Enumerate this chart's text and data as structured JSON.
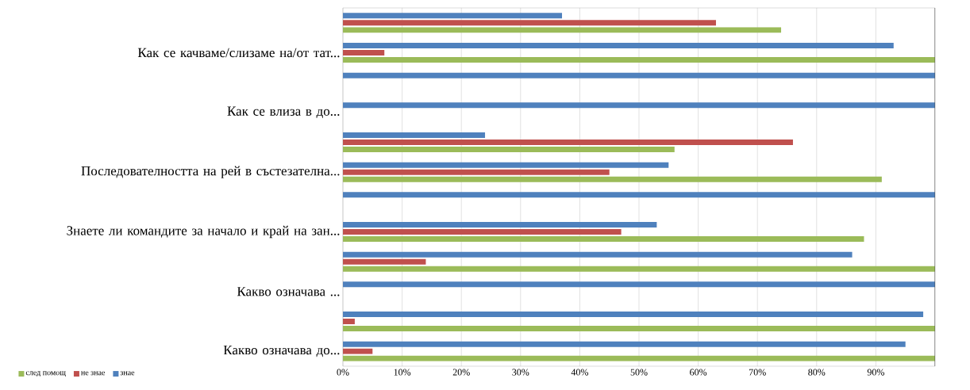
{
  "chart_data": {
    "type": "bar",
    "orientation": "horizontal",
    "categories": [
      null,
      "Как се качваме/слизаме на/от тат...",
      null,
      "Как се влиза в до...",
      null,
      "Последователността на рей в състезателна...",
      null,
      "Знаете ли командите за начало и край на зан...",
      null,
      "Какво означава ...",
      null,
      "Какво означава до..."
    ],
    "series": [
      {
        "name": "след помощ",
        "color": "#9bbb59",
        "values": [
          74,
          100,
          0,
          0,
          56,
          91,
          0,
          88,
          100,
          0,
          100,
          100
        ]
      },
      {
        "name": "не знае",
        "color": "#c0504d",
        "values": [
          63,
          7,
          0,
          0,
          76,
          45,
          0,
          47,
          14,
          0,
          2,
          5
        ]
      },
      {
        "name": "знае",
        "color": "#4f81bd",
        "values": [
          37,
          93,
          100,
          100,
          24,
          55,
          100,
          53,
          86,
          100,
          98,
          95
        ]
      }
    ],
    "xlim": [
      0,
      100
    ],
    "xticks": [
      {
        "value": 0,
        "label": "0%"
      },
      {
        "value": 10,
        "label": "10%"
      },
      {
        "value": 20,
        "label": "20%"
      },
      {
        "value": 30,
        "label": "30%"
      },
      {
        "value": 40,
        "label": "40%"
      },
      {
        "value": 50,
        "label": "50%"
      },
      {
        "value": 60,
        "label": "60%"
      },
      {
        "value": 70,
        "label": "70%"
      },
      {
        "value": 80,
        "label": "80%"
      },
      {
        "value": 90,
        "label": "90%"
      },
      {
        "value": 100,
        "label": null
      }
    ],
    "grid": "x",
    "legend": "bottom left"
  }
}
